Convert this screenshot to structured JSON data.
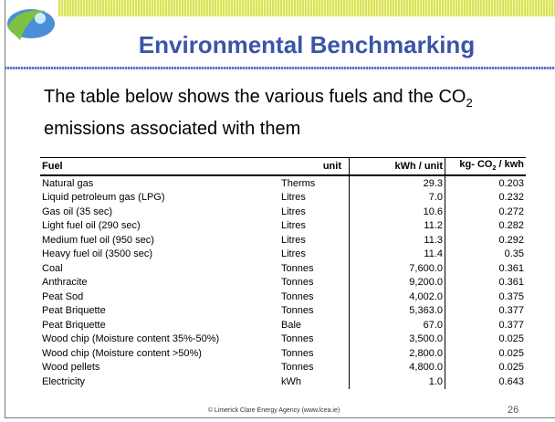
{
  "header": {
    "title": "Environmental Benchmarking"
  },
  "intro": {
    "before": "The table below shows the various fuels and the CO",
    "sub": "2",
    "after": " emissions associated with them"
  },
  "table": {
    "columns": [
      "Fuel",
      "unit",
      "kWh / unit",
      {
        "before": "kg- CO",
        "sub": "2",
        "after": " / kwh"
      }
    ],
    "rows": [
      [
        "Natural gas",
        "Therms",
        "29.3",
        "0.203"
      ],
      [
        "Liquid petroleum gas (LPG)",
        "Litres",
        "7.0",
        "0.232"
      ],
      [
        "Gas oil (35 sec)",
        "Litres",
        "10.6",
        "0.272"
      ],
      [
        "Light fuel oil (290 sec)",
        "Litres",
        "11.2",
        "0.282"
      ],
      [
        "Medium fuel oil (950 sec)",
        "Litres",
        "11.3",
        "0.292"
      ],
      [
        "Heavy fuel oil (3500 sec)",
        "Litres",
        "11.4",
        "0.35"
      ],
      [
        "Coal",
        "Tonnes",
        "7,600.0",
        "0.361"
      ],
      [
        "Anthracite",
        "Tonnes",
        "9,200.0",
        "0.361"
      ],
      [
        "Peat Sod",
        "Tonnes",
        "4,002.0",
        "0.375"
      ],
      [
        "Peat Briquette",
        "Tonnes",
        "5,363.0",
        "0.377"
      ],
      [
        "Peat Briquette",
        "Bale",
        "67.0",
        "0.377"
      ],
      [
        "Wood chip (Moisture content 35%-50%)",
        "Tonnes",
        "3,500.0",
        "0.025"
      ],
      [
        "Wood chip (Moisture content >50%)",
        "Tonnes",
        "2,800.0",
        "0.025"
      ],
      [
        "Wood pellets",
        "Tonnes",
        "4,800.0",
        "0.025"
      ],
      [
        "Electricity",
        "kWh",
        "1.0",
        "0.643"
      ]
    ]
  },
  "footer": {
    "credit": "© Limerick Clare Energy Agency (www.lcea.ie)",
    "page": "26"
  }
}
